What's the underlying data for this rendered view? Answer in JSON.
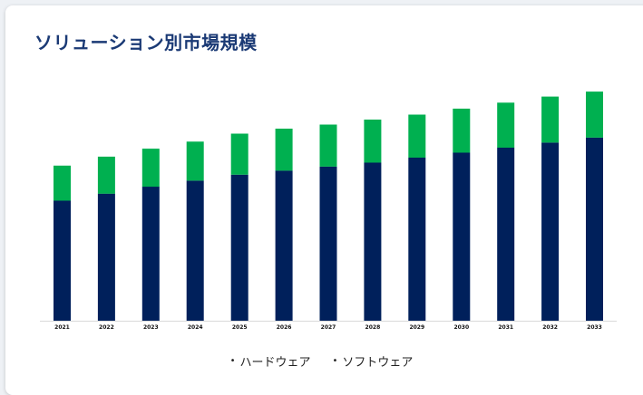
{
  "title": "ソリューション別市場規模",
  "legend": {
    "hardware": "ハードウェア",
    "software": "ソフトウェア",
    "bullet": "•"
  },
  "colors": {
    "hardware": "#00205b",
    "software": "#00b050",
    "axis": "#d9d9d9"
  },
  "chart_data": {
    "type": "bar",
    "stacked": true,
    "title": "ソリューション別市場規模",
    "categories": [
      "2021",
      "2022",
      "2023",
      "2024",
      "2025",
      "2026",
      "2027",
      "2028",
      "2029",
      "2030",
      "2031",
      "2032",
      "2033"
    ],
    "series": [
      {
        "name": "ハードウェア",
        "values": [
          120,
          127,
          134,
          140,
          146,
          150,
          154,
          158,
          163,
          168,
          173,
          178,
          183
        ]
      },
      {
        "name": "ソフトウェア",
        "values": [
          35,
          37,
          38,
          39,
          41,
          42,
          42,
          43,
          43,
          44,
          45,
          46,
          46
        ]
      }
    ],
    "ylim": [
      0,
      230
    ],
    "xlabel": "",
    "ylabel": "",
    "grid": false,
    "legend_position": "bottom-center"
  }
}
